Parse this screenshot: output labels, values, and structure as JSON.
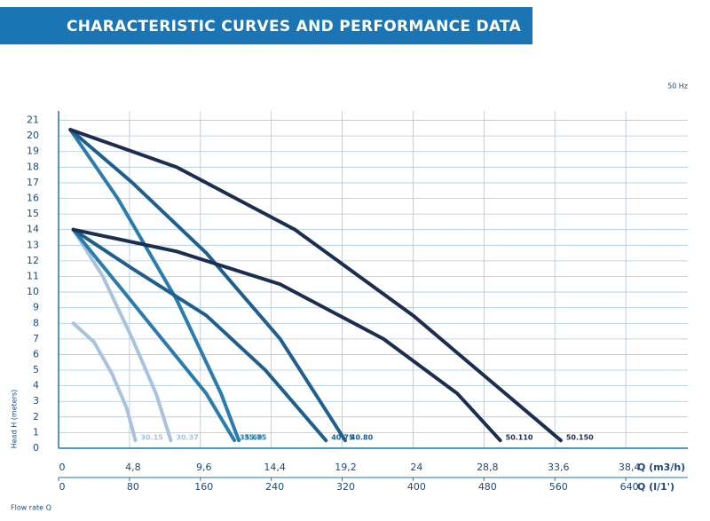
{
  "chart_data": {
    "type": "line",
    "title": "CHARACTERISTIC CURVES AND PERFORMANCE DATA",
    "subtitle": "50 Hz",
    "y_label": "Head H (meters)",
    "x_label": "Q (m3/h)",
    "x2_label": "Q (l/1')",
    "footer_label": "Flow rate Q",
    "xlim": [
      0,
      42.6
    ],
    "xticks": [
      0,
      {
        "value": 4.8,
        "label": "4,8"
      },
      {
        "value": 9.6,
        "label": "9,6"
      },
      {
        "value": 14.4,
        "label": "14,4"
      },
      {
        "value": 19.2,
        "label": "19,2"
      },
      24,
      {
        "value": 28.8,
        "label": "28,8"
      },
      {
        "value": 33.6,
        "label": "33,6"
      },
      {
        "value": 38.4,
        "label": "38,4"
      }
    ],
    "x2lim": [
      0,
      710
    ],
    "x2ticks": [
      0,
      80,
      160,
      240,
      320,
      400,
      480,
      560,
      640
    ],
    "ylim": [
      0,
      21.6
    ],
    "yticks": [
      0,
      1,
      2,
      3,
      4,
      5,
      6,
      7,
      8,
      9,
      10,
      11,
      12,
      13,
      14,
      15,
      16,
      17,
      18,
      19,
      20,
      21
    ],
    "grid": true,
    "series": [
      {
        "name": "30.15",
        "color": "#a9c3dc",
        "x": [
          1,
          2.4,
          3.6,
          4.6,
          5.2
        ],
        "values": [
          8,
          6.8,
          4.8,
          2.6,
          0.5
        ]
      },
      {
        "name": "30.37",
        "color": "#a9c3dc",
        "x": [
          1,
          3,
          5,
          6.6,
          7.6
        ],
        "values": [
          14,
          11,
          7,
          3.5,
          0.5
        ]
      },
      {
        "name": "35.60",
        "color": "#2a7cad",
        "x": [
          1,
          4,
          7,
          10,
          11.9
        ],
        "values": [
          14,
          10.5,
          7,
          3.5,
          0.5
        ]
      },
      {
        "name": "35.75",
        "color": "#2a7cad",
        "x": [
          0.8,
          4,
          8,
          11,
          12.2
        ],
        "values": [
          20.4,
          16,
          9.5,
          3.5,
          0.5
        ]
      },
      {
        "name": "40.75",
        "color": "#1f5f8f",
        "x": [
          1,
          5,
          10,
          14,
          18.1
        ],
        "values": [
          14,
          11.5,
          8.5,
          5,
          0.5
        ]
      },
      {
        "name": "40.80",
        "color": "#1f5f8f",
        "x": [
          0.8,
          5,
          10,
          15,
          19.4
        ],
        "values": [
          20.4,
          17,
          12.5,
          7,
          0.5
        ]
      },
      {
        "name": "50.110",
        "color": "#1c2d4f",
        "x": [
          1,
          8,
          15,
          22,
          27,
          29.9
        ],
        "values": [
          14,
          12.6,
          10.5,
          7,
          3.5,
          0.5
        ]
      },
      {
        "name": "50.150",
        "color": "#1c2d4f",
        "x": [
          0.8,
          8,
          16,
          24,
          30,
          34
        ],
        "values": [
          20.4,
          18,
          14,
          8.5,
          3.7,
          0.5
        ]
      }
    ]
  }
}
